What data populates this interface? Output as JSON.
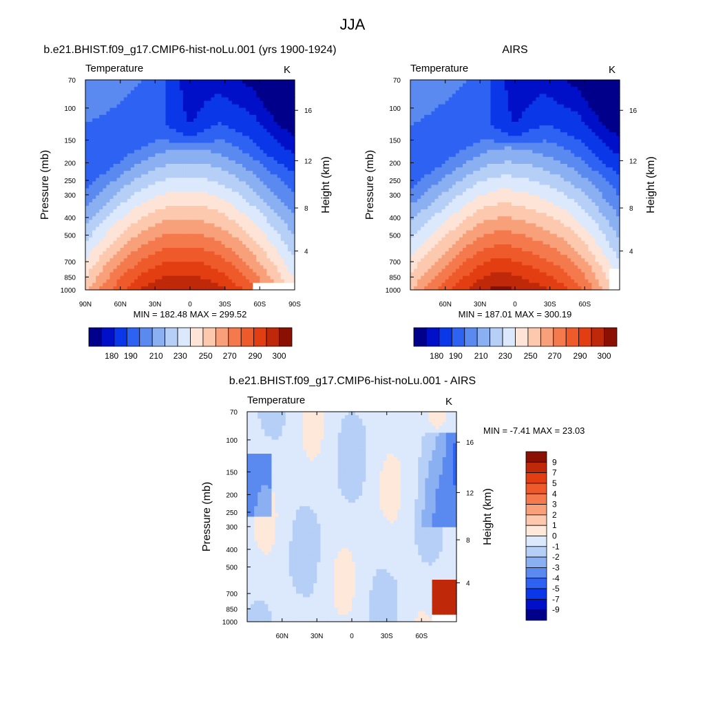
{
  "page": {
    "title": "JJA"
  },
  "colors": {
    "temp_palette": [
      "#00008a",
      "#0010c8",
      "#0a38e8",
      "#2e62f2",
      "#5a8af0",
      "#8ab0f2",
      "#b6cff6",
      "#dce9fc",
      "#fde4d6",
      "#fcc8ae",
      "#f8a07a",
      "#f47a4e",
      "#ef5a2a",
      "#e23e12",
      "#c0280a",
      "#8a1004"
    ],
    "diff_palette": [
      "#00008a",
      "#0010c8",
      "#0a38e8",
      "#2e62f2",
      "#5a8af0",
      "#8ab0f2",
      "#b6cff6",
      "#dce9fc",
      "#fde8da",
      "#fcc8ae",
      "#f8a07a",
      "#f47a4e",
      "#ef5a2a",
      "#e23e12",
      "#c0280a",
      "#8a1004"
    ]
  },
  "chart_data": [
    {
      "type": "heatmap",
      "title": "b.e21.BHIST.f09_g17.CMIP6-hist-noLu.001 (yrs 1900-1924)",
      "left_label": "Temperature",
      "right_label": "K",
      "ylabel": "Pressure (mb)",
      "y2label": "Height (km)",
      "x_ticks": [
        "90N",
        "60N",
        "30N",
        "0",
        "30S",
        "60S",
        "90S"
      ],
      "x_range": [
        90,
        -90
      ],
      "y_ticks": [
        "70",
        "100",
        "150",
        "200",
        "250",
        "300",
        "400",
        "500",
        "700",
        "850",
        "1000"
      ],
      "y_range": [
        70,
        1000
      ],
      "y_scale": "log",
      "y2_ticks": [
        "16",
        "12",
        "8",
        "4"
      ],
      "min_max_text": "MIN = 182.48  MAX = 299.52",
      "min": 182.48,
      "max": 299.52,
      "colorbar_levels": [
        180,
        190,
        200,
        210,
        220,
        230,
        240,
        250,
        260,
        270,
        280,
        290,
        300
      ],
      "colorbar_tick_labels": [
        "180",
        "190",
        "210",
        "230",
        "250",
        "270",
        "290",
        "300"
      ]
    },
    {
      "type": "heatmap",
      "title": "AIRS",
      "left_label": "Temperature",
      "right_label": "K",
      "ylabel": "Pressure (mb)",
      "y2label": "Height (km)",
      "x_ticks": [
        "60N",
        "30N",
        "0",
        "30S",
        "60S"
      ],
      "x_range": [
        90,
        -90
      ],
      "y_ticks": [
        "70",
        "100",
        "150",
        "200",
        "250",
        "300",
        "400",
        "500",
        "700",
        "850",
        "1000"
      ],
      "y_range": [
        70,
        1000
      ],
      "y_scale": "log",
      "y2_ticks": [
        "16",
        "12",
        "8",
        "4"
      ],
      "min_max_text": "MIN = 187.01  MAX = 300.19",
      "min": 187.01,
      "max": 300.19,
      "colorbar_levels": [
        180,
        190,
        200,
        210,
        220,
        230,
        240,
        250,
        260,
        270,
        280,
        290,
        300
      ],
      "colorbar_tick_labels": [
        "180",
        "190",
        "210",
        "230",
        "250",
        "270",
        "290",
        "300"
      ]
    },
    {
      "type": "heatmap",
      "title": "b.e21.BHIST.f09_g17.CMIP6-hist-noLu.001 - AIRS",
      "left_label": "Temperature",
      "right_label": "K",
      "ylabel": "Pressure (mb)",
      "y2label": "Height (km)",
      "x_ticks": [
        "60N",
        "30N",
        "0",
        "30S",
        "60S"
      ],
      "x_range": [
        90,
        -90
      ],
      "y_ticks": [
        "70",
        "100",
        "150",
        "200",
        "250",
        "300",
        "400",
        "500",
        "700",
        "850",
        "1000"
      ],
      "y_range": [
        70,
        1000
      ],
      "y_scale": "log",
      "y2_ticks": [
        "16",
        "12",
        "8",
        "4"
      ],
      "min_max_text": "MIN =  -7.41  MAX =  23.03",
      "min": -7.41,
      "max": 23.03,
      "colorbar_tick_labels": [
        "9",
        "7",
        "5",
        "4",
        "3",
        "2",
        "1",
        "0",
        "-1",
        "-2",
        "-3",
        "-4",
        "-5",
        "-7",
        "-9"
      ]
    }
  ]
}
